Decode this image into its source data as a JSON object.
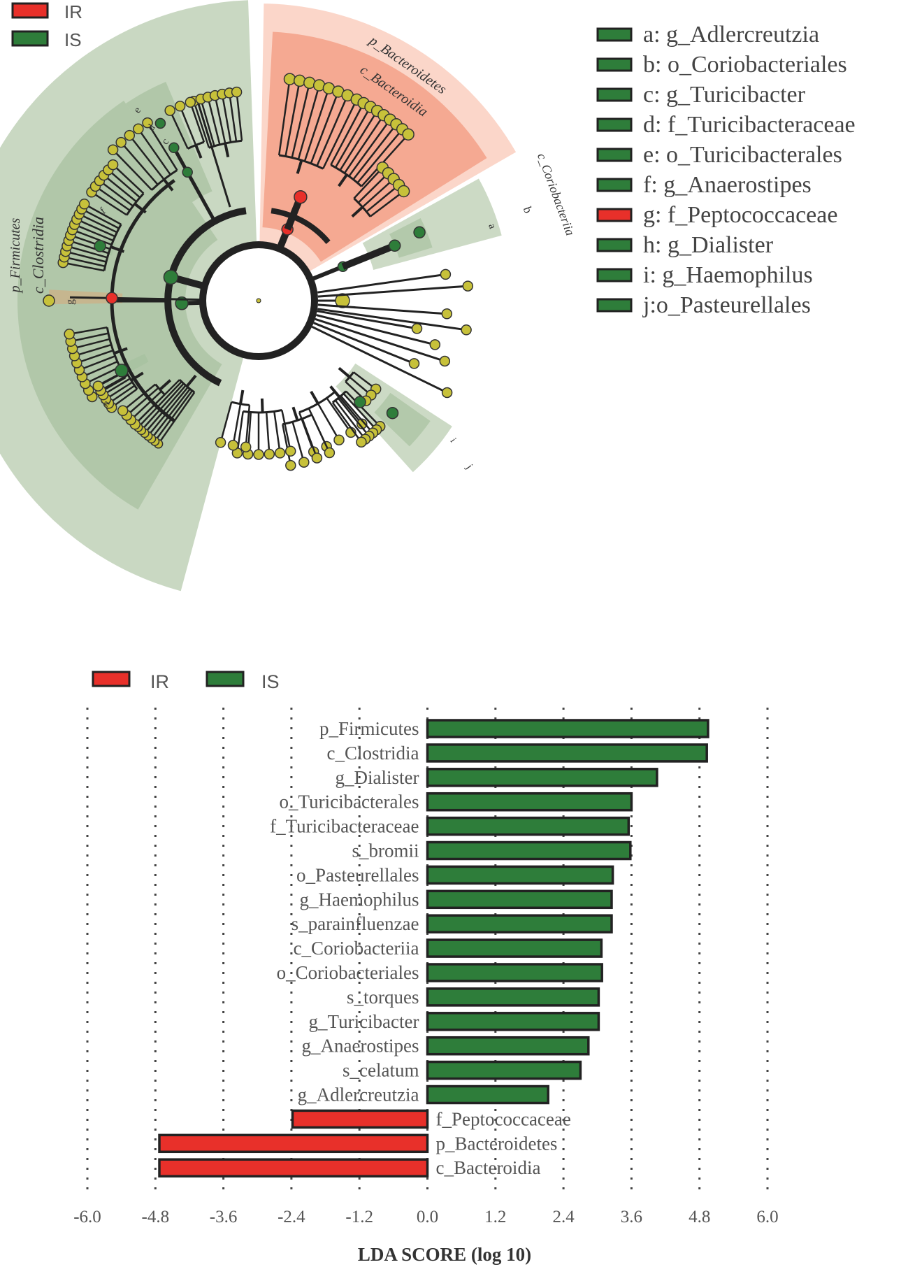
{
  "chart_data": [
    {
      "type": "cladogram",
      "legend": [
        {
          "name": "IR",
          "color": "#e8302a"
        },
        {
          "name": "IS",
          "color": "#2e7d3a"
        }
      ],
      "key": [
        {
          "label": "a: g_Adlercreutzia",
          "group": "IS"
        },
        {
          "label": "b: o_Coriobacteriales",
          "group": "IS"
        },
        {
          "label": "c: g_Turicibacter",
          "group": "IS"
        },
        {
          "label": "d: f_Turicibacteraceae",
          "group": "IS"
        },
        {
          "label": "e: o_Turicibacterales",
          "group": "IS"
        },
        {
          "label": "f: g_Anaerostipes",
          "group": "IS"
        },
        {
          "label": "g: f_Peptococcaceae",
          "group": "IR"
        },
        {
          "label": "h: g_Dialister",
          "group": "IS"
        },
        {
          "label": "i: g_Haemophilus",
          "group": "IS"
        },
        {
          "label": "j:o_Pasteurellales",
          "group": "IS"
        }
      ],
      "clade_labels": {
        "firmicutes": "p_Firmicutes",
        "clostridia": "c_Clostridia",
        "bacteroidetes": "p_Bacteroidetes",
        "bacteroidia": "c_Bacteroidia",
        "coriobacteriia": "c_Coriobacteriia",
        "a": "a",
        "b": "b",
        "c": "c",
        "d": "d",
        "e": "e",
        "f": "f",
        "g": "g",
        "h": "h",
        "i": "i",
        "j": "j"
      },
      "colors": {
        "IS_sector": "#c9d8c2",
        "IS_inner": "#a8c2a0",
        "IR_sector": "#f4a48c",
        "IR_inner": "#fbd4c6",
        "node": "#c7c13a",
        "branch": "#222222"
      }
    },
    {
      "type": "bar",
      "orientation": "horizontal",
      "legend": [
        {
          "name": "IR",
          "color": "#e8302a"
        },
        {
          "name": "IS",
          "color": "#2e7d3a"
        }
      ],
      "categories": [
        "p_Firmicutes",
        "c_Clostridia",
        "g_Dialister",
        "o_Turicibacterales",
        "f_Turicibacteraceae",
        "s_bromii",
        "o_Pasteurellales",
        "g_Haemophilus",
        "s_parainfluenzae",
        "c_Coriobacteriia",
        "o_Coriobacteriales",
        "s_torques",
        "g_Turicibacter",
        "g_Anaerostipes",
        "s_celatum",
        "g_Adlercreutzia",
        "f_Peptococcaceae",
        "p_Bacteroidetes",
        "c_Bacteroidia"
      ],
      "values": [
        4.95,
        4.93,
        4.05,
        3.6,
        3.55,
        3.58,
        3.27,
        3.25,
        3.25,
        3.07,
        3.08,
        3.02,
        3.02,
        2.84,
        2.7,
        2.13,
        -2.38,
        -4.73,
        -4.73
      ],
      "groups": [
        "IS",
        "IS",
        "IS",
        "IS",
        "IS",
        "IS",
        "IS",
        "IS",
        "IS",
        "IS",
        "IS",
        "IS",
        "IS",
        "IS",
        "IS",
        "IS",
        "IR",
        "IR",
        "IR"
      ],
      "xlim": [
        -6.0,
        6.0
      ],
      "xticks": [
        "-6.0",
        "-4.8",
        "-3.6",
        "-2.4",
        "-1.2",
        "0.0",
        "1.2",
        "2.4",
        "3.6",
        "4.8",
        "6.0"
      ],
      "xlabel": "LDA SCORE (log 10)",
      "grid": "vertical dotted"
    }
  ]
}
